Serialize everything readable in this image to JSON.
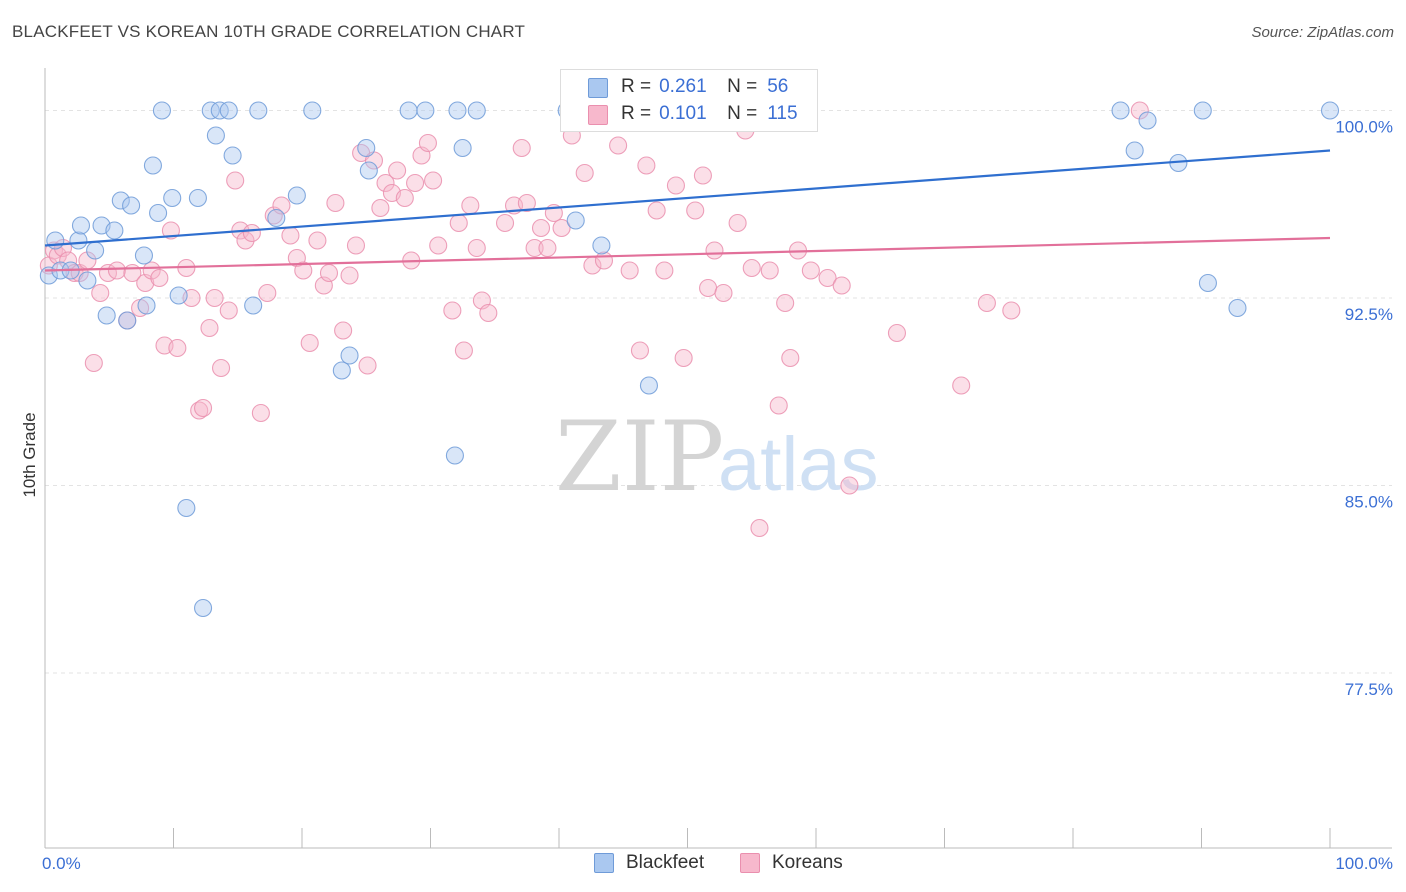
{
  "title": "BLACKFEET VS KOREAN 10TH GRADE CORRELATION CHART",
  "source": "Source: ZipAtlas.com",
  "watermark": {
    "zip": "ZIP",
    "atlas": "atlas"
  },
  "legend": {
    "blackfeet": {
      "r_label": "R =",
      "r_value": "0.261",
      "n_label": "N =",
      "n_value": "56"
    },
    "koreans": {
      "r_label": "R =",
      "r_value": "0.101",
      "n_label": "N =",
      "n_value": "115"
    }
  },
  "bottom_legend": {
    "blackfeet": "Blackfeet",
    "koreans": "Koreans"
  },
  "colors": {
    "blackfeet_fill": "#aac8f0",
    "blackfeet_stroke": "#6f9bd8",
    "blackfeet_line": "#2f6fcf",
    "koreans_fill": "#f7b8cc",
    "koreans_stroke": "#ea8fae",
    "koreans_line": "#e2709a",
    "tick_label": "#3b6fd4"
  },
  "chart_data": {
    "type": "scatter",
    "title": "BLACKFEET VS KOREAN 10TH GRADE CORRELATION CHART",
    "xlabel": "",
    "ylabel": "10th Grade",
    "xlim": [
      0,
      100
    ],
    "ylim": [
      70.5,
      101.7
    ],
    "x_tick_labels": [
      "0.0%",
      "100.0%"
    ],
    "y_ticks": [
      100.0,
      92.5,
      85.0,
      77.5
    ],
    "y_tick_labels": [
      "100.0%",
      "92.5%",
      "85.0%",
      "77.5%"
    ],
    "grid": true,
    "legend_position": "top-center",
    "series": [
      {
        "name": "Blackfeet",
        "r": 0.261,
        "n": 56,
        "trend": [
          [
            0,
            94.6
          ],
          [
            100,
            98.4
          ]
        ],
        "points": [
          [
            0.3,
            93.4
          ],
          [
            0.8,
            94.8
          ],
          [
            1.2,
            93.6
          ],
          [
            2.0,
            93.6
          ],
          [
            2.6,
            94.8
          ],
          [
            2.8,
            95.4
          ],
          [
            3.3,
            93.2
          ],
          [
            3.9,
            94.4
          ],
          [
            4.4,
            95.4
          ],
          [
            4.8,
            91.8
          ],
          [
            5.4,
            95.2
          ],
          [
            5.9,
            96.4
          ],
          [
            6.4,
            91.6
          ],
          [
            6.7,
            96.2
          ],
          [
            7.7,
            94.2
          ],
          [
            7.9,
            92.2
          ],
          [
            8.4,
            97.8
          ],
          [
            8.8,
            95.9
          ],
          [
            9.1,
            100.0
          ],
          [
            9.9,
            96.5
          ],
          [
            10.4,
            92.6
          ],
          [
            11.0,
            84.1
          ],
          [
            11.9,
            96.5
          ],
          [
            12.3,
            80.1
          ],
          [
            12.9,
            100.0
          ],
          [
            13.3,
            99.0
          ],
          [
            13.6,
            100.0
          ],
          [
            14.3,
            100.0
          ],
          [
            14.6,
            98.2
          ],
          [
            16.2,
            92.2
          ],
          [
            16.6,
            100.0
          ],
          [
            18.0,
            95.7
          ],
          [
            19.6,
            96.6
          ],
          [
            20.8,
            100.0
          ],
          [
            23.1,
            89.6
          ],
          [
            23.7,
            90.2
          ],
          [
            25.0,
            98.5
          ],
          [
            25.2,
            97.6
          ],
          [
            28.3,
            100.0
          ],
          [
            29.6,
            100.0
          ],
          [
            31.9,
            86.2
          ],
          [
            32.1,
            100.0
          ],
          [
            32.5,
            98.5
          ],
          [
            33.6,
            100.0
          ],
          [
            40.6,
            100.0
          ],
          [
            41.3,
            95.6
          ],
          [
            43.3,
            94.6
          ],
          [
            47.0,
            89.0
          ],
          [
            83.7,
            100.0
          ],
          [
            84.8,
            98.4
          ],
          [
            85.8,
            99.6
          ],
          [
            88.2,
            97.9
          ],
          [
            90.1,
            100.0
          ],
          [
            90.5,
            93.1
          ],
          [
            92.8,
            92.1
          ],
          [
            100.0,
            100.0
          ]
        ]
      },
      {
        "name": "Koreans",
        "r": 0.101,
        "n": 115,
        "trend": [
          [
            0,
            93.6
          ],
          [
            100,
            94.9
          ]
        ],
        "points": [
          [
            0.3,
            93.8
          ],
          [
            0.7,
            94.4
          ],
          [
            1.0,
            94.2
          ],
          [
            1.4,
            94.5
          ],
          [
            1.8,
            94.0
          ],
          [
            2.3,
            93.5
          ],
          [
            2.7,
            93.5
          ],
          [
            3.3,
            94.0
          ],
          [
            3.8,
            89.9
          ],
          [
            4.3,
            92.7
          ],
          [
            4.9,
            93.5
          ],
          [
            5.6,
            93.6
          ],
          [
            6.4,
            91.6
          ],
          [
            6.8,
            93.5
          ],
          [
            7.4,
            92.1
          ],
          [
            7.8,
            93.1
          ],
          [
            8.3,
            93.6
          ],
          [
            8.9,
            93.3
          ],
          [
            9.3,
            90.6
          ],
          [
            9.8,
            95.2
          ],
          [
            10.3,
            90.5
          ],
          [
            11.0,
            93.7
          ],
          [
            11.4,
            92.5
          ],
          [
            12.0,
            88.0
          ],
          [
            12.3,
            88.1
          ],
          [
            12.8,
            91.3
          ],
          [
            13.2,
            92.5
          ],
          [
            13.7,
            89.7
          ],
          [
            14.3,
            92.0
          ],
          [
            14.8,
            97.2
          ],
          [
            15.2,
            95.2
          ],
          [
            15.6,
            94.8
          ],
          [
            16.1,
            95.1
          ],
          [
            16.8,
            87.9
          ],
          [
            17.3,
            92.7
          ],
          [
            17.8,
            95.8
          ],
          [
            18.4,
            96.2
          ],
          [
            19.1,
            95.0
          ],
          [
            19.6,
            94.1
          ],
          [
            20.1,
            93.6
          ],
          [
            20.6,
            90.7
          ],
          [
            21.2,
            94.8
          ],
          [
            21.7,
            93.0
          ],
          [
            22.1,
            93.5
          ],
          [
            22.6,
            96.3
          ],
          [
            23.2,
            91.2
          ],
          [
            23.7,
            93.4
          ],
          [
            24.2,
            94.6
          ],
          [
            24.6,
            98.3
          ],
          [
            25.1,
            89.8
          ],
          [
            25.6,
            98.0
          ],
          [
            26.1,
            96.1
          ],
          [
            26.5,
            97.1
          ],
          [
            27.0,
            96.7
          ],
          [
            27.4,
            97.6
          ],
          [
            28.0,
            96.5
          ],
          [
            28.5,
            94.0
          ],
          [
            28.8,
            97.1
          ],
          [
            29.3,
            98.2
          ],
          [
            29.8,
            98.7
          ],
          [
            30.2,
            97.2
          ],
          [
            30.6,
            94.6
          ],
          [
            31.7,
            92.0
          ],
          [
            32.2,
            95.5
          ],
          [
            32.6,
            90.4
          ],
          [
            33.1,
            96.2
          ],
          [
            33.6,
            94.5
          ],
          [
            34.0,
            92.4
          ],
          [
            34.5,
            91.9
          ],
          [
            35.8,
            95.5
          ],
          [
            36.5,
            96.2
          ],
          [
            37.1,
            98.5
          ],
          [
            37.5,
            96.3
          ],
          [
            38.1,
            94.5
          ],
          [
            38.6,
            95.3
          ],
          [
            39.1,
            94.5
          ],
          [
            39.6,
            95.9
          ],
          [
            40.2,
            95.3
          ],
          [
            41.0,
            99.0
          ],
          [
            41.4,
            100.0
          ],
          [
            42.0,
            97.5
          ],
          [
            42.6,
            93.8
          ],
          [
            43.5,
            94.0
          ],
          [
            44.6,
            98.6
          ],
          [
            45.5,
            93.6
          ],
          [
            46.3,
            90.4
          ],
          [
            46.8,
            97.8
          ],
          [
            47.3,
            100.0
          ],
          [
            47.6,
            96.0
          ],
          [
            48.2,
            93.6
          ],
          [
            49.1,
            97.0
          ],
          [
            49.7,
            90.1
          ],
          [
            50.6,
            96.0
          ],
          [
            51.2,
            97.4
          ],
          [
            51.6,
            92.9
          ],
          [
            52.1,
            94.4
          ],
          [
            52.8,
            92.7
          ],
          [
            53.9,
            95.5
          ],
          [
            54.5,
            99.2
          ],
          [
            55.0,
            93.7
          ],
          [
            55.6,
            83.3
          ],
          [
            56.4,
            93.6
          ],
          [
            57.1,
            88.2
          ],
          [
            57.6,
            92.3
          ],
          [
            58.0,
            90.1
          ],
          [
            58.6,
            94.4
          ],
          [
            59.6,
            93.6
          ],
          [
            60.9,
            93.3
          ],
          [
            62.0,
            93.0
          ],
          [
            62.6,
            85.0
          ],
          [
            66.3,
            91.1
          ],
          [
            71.3,
            89.0
          ],
          [
            73.3,
            92.3
          ],
          [
            75.2,
            92.0
          ],
          [
            85.2,
            100.0
          ]
        ]
      }
    ]
  }
}
